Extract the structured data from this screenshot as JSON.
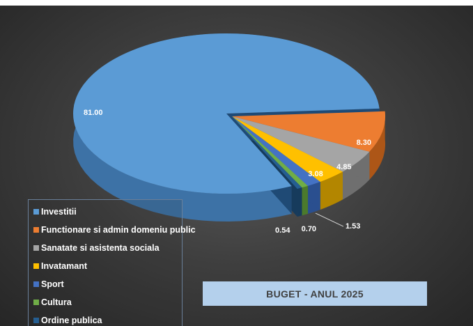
{
  "chart_data": {
    "type": "pie",
    "title": "BUGET - ANUL 2025",
    "slices": [
      {
        "name": "Investitii",
        "value": 81.0,
        "label": "81.00",
        "color": "#5b9bd5",
        "side": "#3d72a6"
      },
      {
        "name": "Functionare si admin domeniu public",
        "value": 8.3,
        "label": "8.30",
        "color": "#ed7d31",
        "side": "#ad5617"
      },
      {
        "name": "Sanatate si asistenta sociala",
        "value": 4.85,
        "label": "4.85",
        "color": "#a5a5a5",
        "side": "#6f6f6f"
      },
      {
        "name": "Invatamant",
        "value": 3.08,
        "label": "3.08",
        "color": "#ffc000",
        "side": "#b38600"
      },
      {
        "name": "Sport",
        "value": 1.53,
        "label": "1.53",
        "color": "#4472c4",
        "side": "#2a4f8f"
      },
      {
        "name": "Cultura",
        "value": 0.7,
        "label": "0.70",
        "color": "#70ad47",
        "side": "#4b7a2c"
      },
      {
        "name": "Ordine publica",
        "value": 0.54,
        "label": "0.54",
        "color": "#255e91",
        "side": "#163b5c"
      }
    ],
    "legend_position": "bottom-left"
  }
}
